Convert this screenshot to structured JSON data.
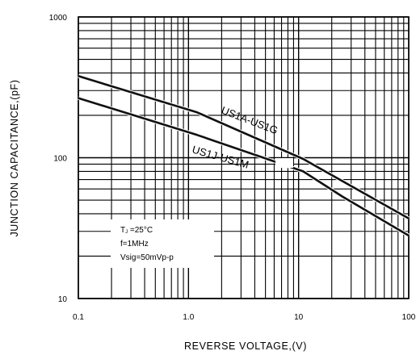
{
  "chart_data": {
    "type": "line",
    "ylabel": "JUNCTION CAPACITANCE,(pF)",
    "xlabel": "REVERSE VOLTAGE,(V)",
    "x_scale": "log",
    "y_scale": "log",
    "xlim": [
      0.1,
      100
    ],
    "ylim": [
      10,
      1000
    ],
    "x_ticks": [
      "0.1",
      "1.0",
      "10",
      "100"
    ],
    "y_ticks": [
      "10",
      "100",
      "1000"
    ],
    "grid": true,
    "series": [
      {
        "name": "US1A-US1G",
        "x": [
          0.1,
          1.2,
          11,
          100
        ],
        "y": [
          380,
          210,
          98,
          37
        ]
      },
      {
        "name": "US1J-US1M",
        "x": [
          0.1,
          1.2,
          11,
          25,
          100
        ],
        "y": [
          265,
          145,
          80,
          53,
          28
        ]
      }
    ],
    "annotation": {
      "lines": [
        "TJ =25°C",
        "f=1MHz",
        "Vsig=50mVp-p"
      ]
    }
  }
}
